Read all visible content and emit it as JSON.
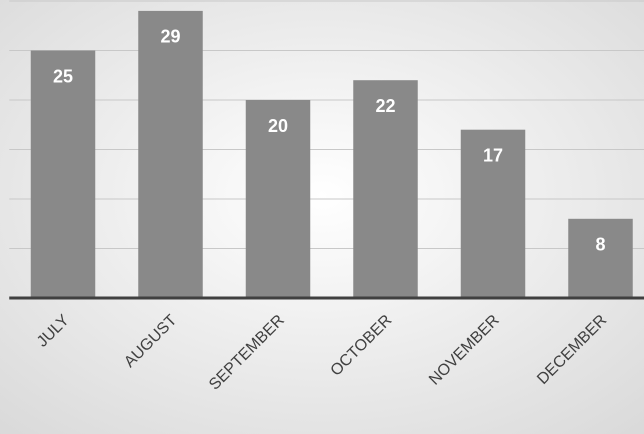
{
  "chart_data": {
    "type": "bar",
    "categories": [
      "JULY",
      "AUGUST",
      "SEPTEMBER",
      "OCTOBER",
      "NOVEMBER",
      "DECEMBER"
    ],
    "values": [
      25,
      29,
      20,
      22,
      17,
      8
    ],
    "color": "#898989",
    "ylim": [
      0,
      30
    ],
    "yticks": [
      0,
      5,
      10,
      15,
      20,
      25,
      30
    ],
    "grid": true
  }
}
